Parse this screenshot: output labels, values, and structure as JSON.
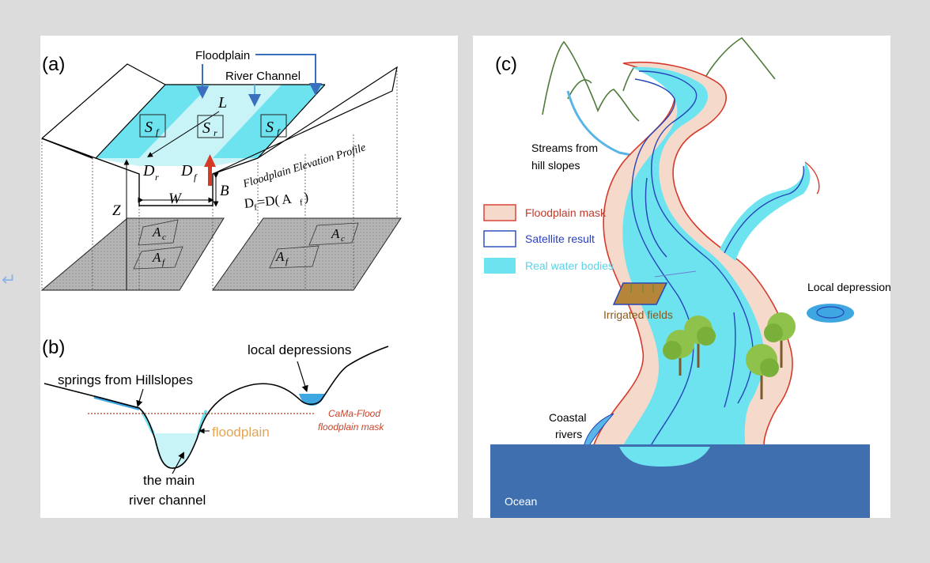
{
  "return_glyph": "↵",
  "panel_a": {
    "label": "(a)",
    "floodplain": "Floodplain",
    "river_channel": "River Channel",
    "L": "L",
    "S_main": "S",
    "S_f_sub": "f",
    "S_r_sub": "r",
    "D_main": "D",
    "D_r_sub": "r",
    "D_f_sub": "f",
    "W": "W",
    "B": "B",
    "Z": "Z",
    "profile_label": "Floodplain Elevation Profile",
    "formula": "D",
    "formula_sub": "f",
    "formula_rest": "=D( A",
    "formula_sub2": "f",
    "formula_close": ")",
    "A_main": "A",
    "A_c_sub": "c",
    "A_f_sub": "f"
  },
  "panel_b": {
    "label": "(b)",
    "local_depressions": "local depressions",
    "springs": "springs from Hillslopes",
    "mask_line1": "CaMa-Flood",
    "mask_line2": "floodplain mask",
    "floodplain": "floodplain",
    "channel_line1": "the main",
    "channel_line2": "river channel"
  },
  "panel_c": {
    "label": "(c)",
    "streams_line1": "Streams from",
    "streams_line2": "hill slopes",
    "legend": [
      {
        "label": "Floodplain mask",
        "color": "#c0392b"
      },
      {
        "label": "Satellite result",
        "color": "#2a3fbf"
      },
      {
        "label": "Real water bodies",
        "color": "#5ad3e6"
      }
    ],
    "local_depression": "Local depression",
    "irrigated": "Irrigated fields",
    "coastal_line1": "Coastal",
    "coastal_line2": "rivers",
    "ocean": "Ocean"
  },
  "colors": {
    "water": "#6ee3f0",
    "water_light": "#c8f4f7",
    "floodplain_fill": "#f5dacb",
    "floodplain_edge": "#d63a2c",
    "satellite": "#2545b8",
    "ocean": "#3f6fae",
    "mountain": "#4e7a3a",
    "red_arrow": "#d43a24",
    "blue_arrow": "#3a6fbf",
    "gray_ground": "#b9b9b9"
  }
}
